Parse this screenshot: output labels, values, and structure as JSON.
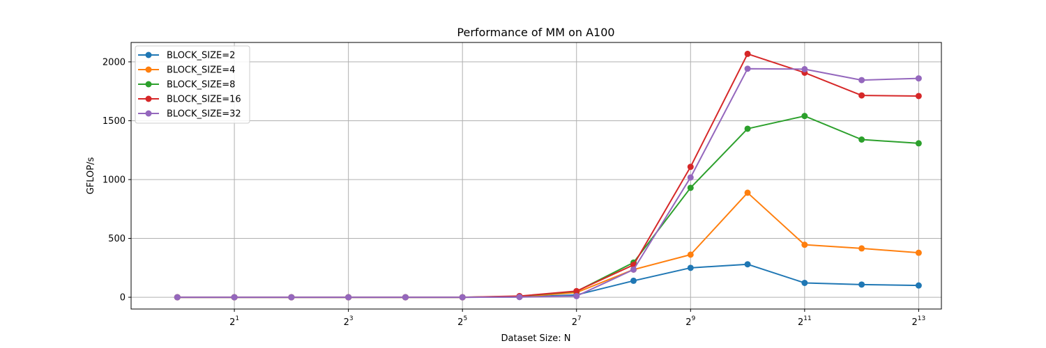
{
  "chart_data": {
    "type": "line",
    "title": "Performance of MM on A100",
    "xlabel": "Dataset Size: N",
    "ylabel": "GFLOP/s",
    "x_scale": "log2",
    "x": [
      1,
      2,
      4,
      8,
      16,
      32,
      64,
      128,
      256,
      512,
      1024,
      2048,
      4096,
      8192
    ],
    "xlim": [
      0.57,
      10800
    ],
    "ylim": [
      -100,
      2165
    ],
    "x_ticks": [
      {
        "value": 2,
        "base": "2",
        "exp": "1"
      },
      {
        "value": 8,
        "base": "2",
        "exp": "3"
      },
      {
        "value": 32,
        "base": "2",
        "exp": "5"
      },
      {
        "value": 128,
        "base": "2",
        "exp": "7"
      },
      {
        "value": 512,
        "base": "2",
        "exp": "9"
      },
      {
        "value": 2048,
        "base": "2",
        "exp": "11"
      },
      {
        "value": 8192,
        "base": "2",
        "exp": "13"
      }
    ],
    "y_ticks": [
      0,
      500,
      1000,
      1500,
      2000
    ],
    "grid": true,
    "legend_position": "top-left",
    "series": [
      {
        "name": "BLOCK_SIZE=2",
        "color": "#1f77b4",
        "values": [
          0,
          0,
          0,
          0,
          0,
          0,
          2,
          20,
          140,
          250,
          280,
          122,
          108,
          100
        ]
      },
      {
        "name": "BLOCK_SIZE=4",
        "color": "#ff7f0e",
        "values": [
          0,
          0,
          0,
          0,
          0,
          0,
          4,
          40,
          235,
          362,
          888,
          446,
          415,
          378
        ]
      },
      {
        "name": "BLOCK_SIZE=8",
        "color": "#2ca02c",
        "values": [
          0,
          0,
          0,
          0,
          0,
          0,
          8,
          50,
          295,
          930,
          1432,
          1540,
          1340,
          1308
        ]
      },
      {
        "name": "BLOCK_SIZE=16",
        "color": "#d62728",
        "values": [
          0,
          0,
          0,
          0,
          0,
          0,
          10,
          52,
          275,
          1108,
          2068,
          1908,
          1715,
          1710
        ]
      },
      {
        "name": "BLOCK_SIZE=32",
        "color": "#9467bd",
        "values": [
          0,
          0,
          0,
          0,
          0,
          0,
          2,
          10,
          235,
          1018,
          1942,
          1938,
          1845,
          1860
        ]
      }
    ]
  }
}
